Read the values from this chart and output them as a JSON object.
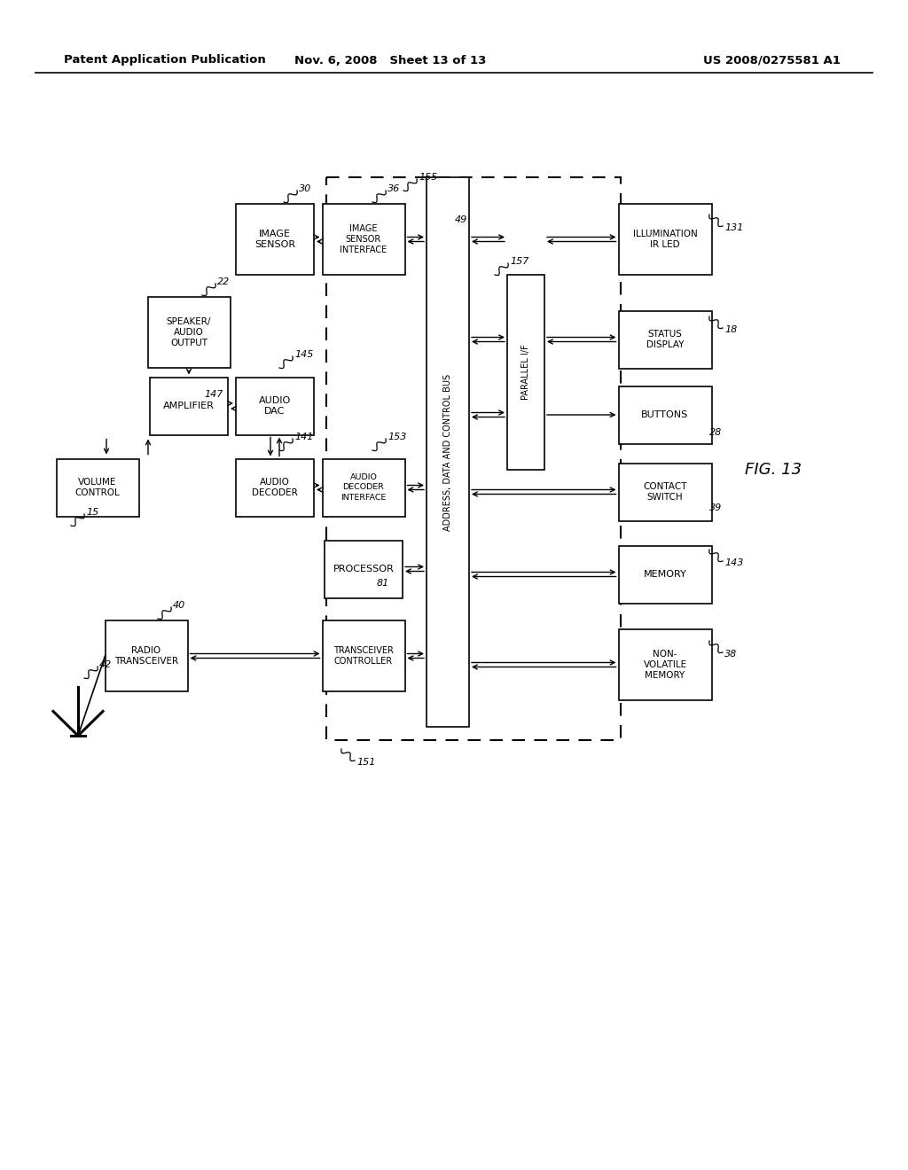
{
  "header_left": "Patent Application Publication",
  "header_mid": "Nov. 6, 2008   Sheet 13 of 13",
  "header_right": "US 2008/0275581 A1",
  "fig_label": "FIG. 13",
  "bg": "#ffffff"
}
